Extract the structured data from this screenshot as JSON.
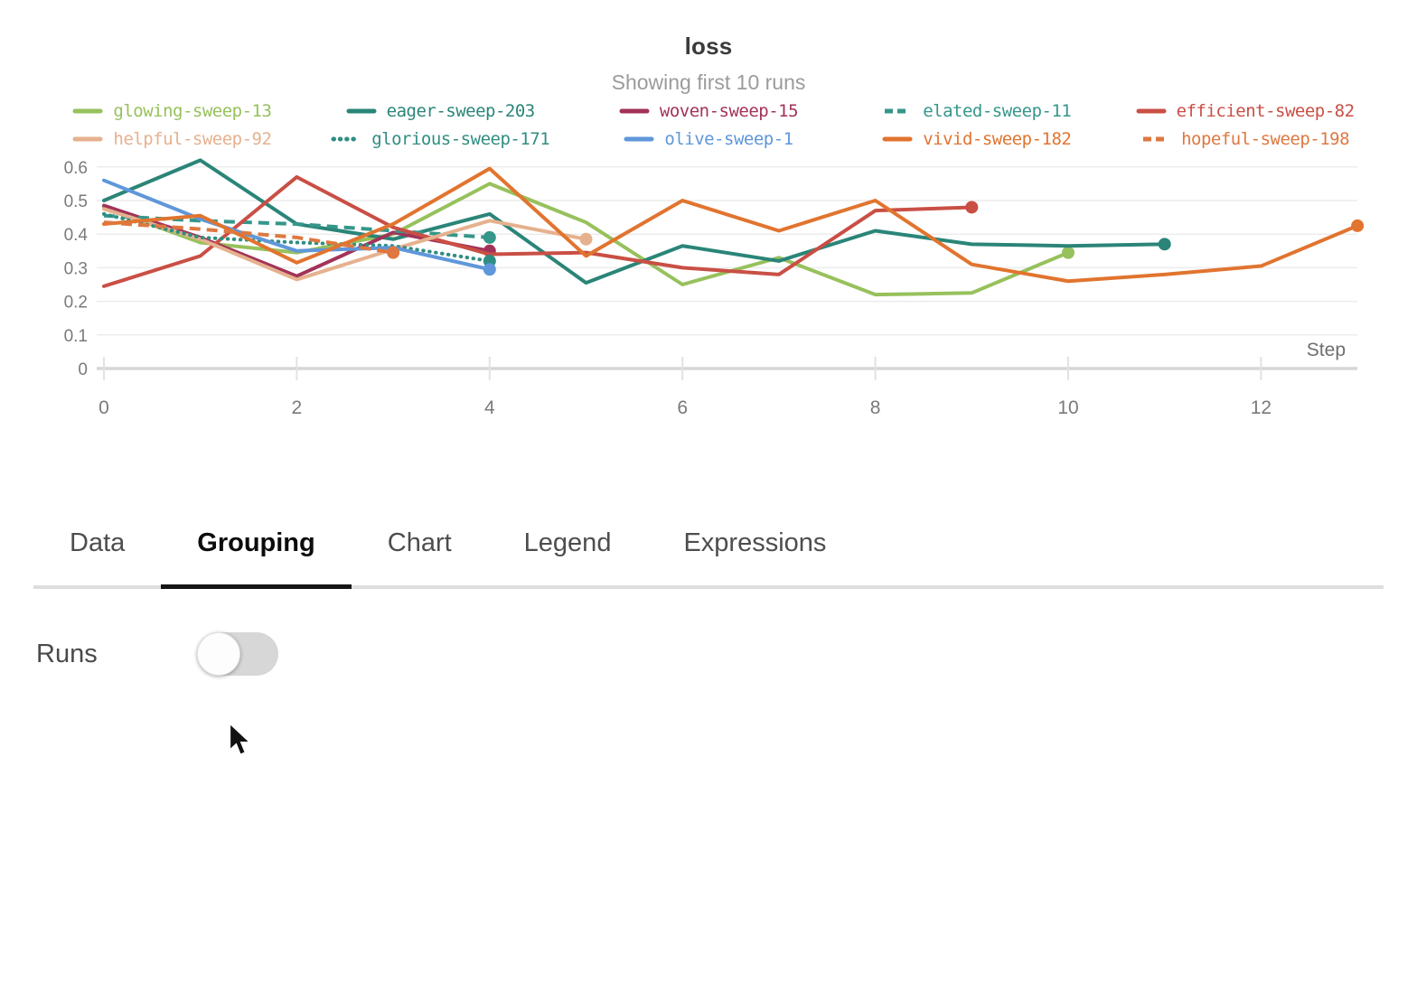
{
  "chart_data": {
    "type": "line",
    "title": "loss",
    "subtitle": "Showing first 10 runs",
    "xlabel": "Step",
    "x_ticks": [
      0,
      2,
      4,
      6,
      8,
      10,
      12
    ],
    "y_ticks": [
      0,
      0.1,
      0.2,
      0.3,
      0.4,
      0.5,
      0.6
    ],
    "xlim": [
      0,
      13
    ],
    "ylim": [
      0,
      0.65
    ],
    "grid": "horizontal-only",
    "legend_position": "top",
    "end_markers": true,
    "x_start": 0,
    "x_interval": 1,
    "series": [
      {
        "name": "glowing-sweep-13",
        "color": "#97c15c",
        "style": "solid",
        "values": [
          0.48,
          0.375,
          0.345,
          0.4,
          0.55,
          0.435,
          0.25,
          0.33,
          0.22,
          0.225,
          0.345
        ]
      },
      {
        "name": "eager-sweep-203",
        "color": "#2a8578",
        "style": "solid",
        "values": [
          0.5,
          0.62,
          0.43,
          0.385,
          0.46,
          0.255,
          0.365,
          0.32,
          0.41,
          0.37,
          0.365,
          0.37
        ]
      },
      {
        "name": "woven-sweep-15",
        "color": "#a23358",
        "style": "solid",
        "values": [
          0.485,
          0.39,
          0.275,
          0.405,
          0.35
        ]
      },
      {
        "name": "elated-sweep-11",
        "color": "#35968a",
        "style": "dashed",
        "values": [
          0.455,
          0.44,
          0.43,
          0.41,
          0.39
        ]
      },
      {
        "name": "efficient-sweep-82",
        "color": "#c94f45",
        "style": "solid",
        "values": [
          0.245,
          0.335,
          0.57,
          0.42,
          0.34,
          0.345,
          0.3,
          0.28,
          0.47,
          0.48
        ]
      },
      {
        "name": "helpful-sweep-92",
        "color": "#e6b18e",
        "style": "solid",
        "values": [
          0.475,
          0.385,
          0.265,
          0.355,
          0.44,
          0.385
        ]
      },
      {
        "name": "glorious-sweep-171",
        "color": "#2f8e82",
        "style": "dotted",
        "values": [
          0.46,
          0.39,
          0.375,
          0.365,
          0.32
        ]
      },
      {
        "name": "olive-sweep-1",
        "color": "#5f97da",
        "style": "solid",
        "values": [
          0.56,
          0.445,
          0.35,
          0.36,
          0.295
        ]
      },
      {
        "name": "vivid-sweep-182",
        "color": "#e1742f",
        "style": "solid",
        "values": [
          0.43,
          0.455,
          0.315,
          0.43,
          0.595,
          0.335,
          0.5,
          0.41,
          0.5,
          0.31,
          0.26,
          0.28,
          0.305,
          0.425
        ]
      },
      {
        "name": "hopeful-sweep-198",
        "color": "#de7840",
        "style": "dashed",
        "values": [
          0.435,
          0.415,
          0.39,
          0.345
        ]
      }
    ],
    "axis_colors": {
      "grid": "#ececec",
      "axis_line": "#d6d6d6",
      "tick_label": "#7a7a7a",
      "step_label": "#6e6e6e"
    }
  },
  "tabs": {
    "items": [
      {
        "label": "Data",
        "active": false
      },
      {
        "label": "Grouping",
        "active": true
      },
      {
        "label": "Chart",
        "active": false
      },
      {
        "label": "Legend",
        "active": false
      },
      {
        "label": "Expressions",
        "active": false
      }
    ]
  },
  "grouping": {
    "runs_label": "Runs",
    "runs_enabled": false
  }
}
